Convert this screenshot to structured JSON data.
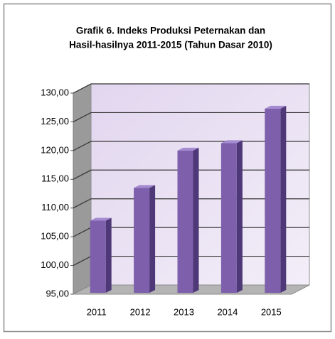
{
  "chart_data": {
    "type": "bar3d",
    "title": [
      "Grafik 6.  Indeks Produksi Peternakan dan",
      "Hasil-hasilnya 2011-2015 (Tahun Dasar 2010)"
    ],
    "categories": [
      "2011",
      "2012",
      "2013",
      "2014",
      "2015"
    ],
    "values": [
      107.8,
      113.5,
      120.0,
      121.3,
      127.3
    ],
    "color": "#7d5fab",
    "ylim": [
      95,
      130
    ],
    "yticks": [
      {
        "value": 95,
        "label": "95,00"
      },
      {
        "value": 100,
        "label": "100,00"
      },
      {
        "value": 105,
        "label": "105,00"
      },
      {
        "value": 110,
        "label": "110,00"
      },
      {
        "value": 115,
        "label": "115,00"
      },
      {
        "value": 120,
        "label": "120,00"
      },
      {
        "value": 125,
        "label": "125,00"
      },
      {
        "value": 130,
        "label": "130,00"
      }
    ],
    "grid": true
  }
}
